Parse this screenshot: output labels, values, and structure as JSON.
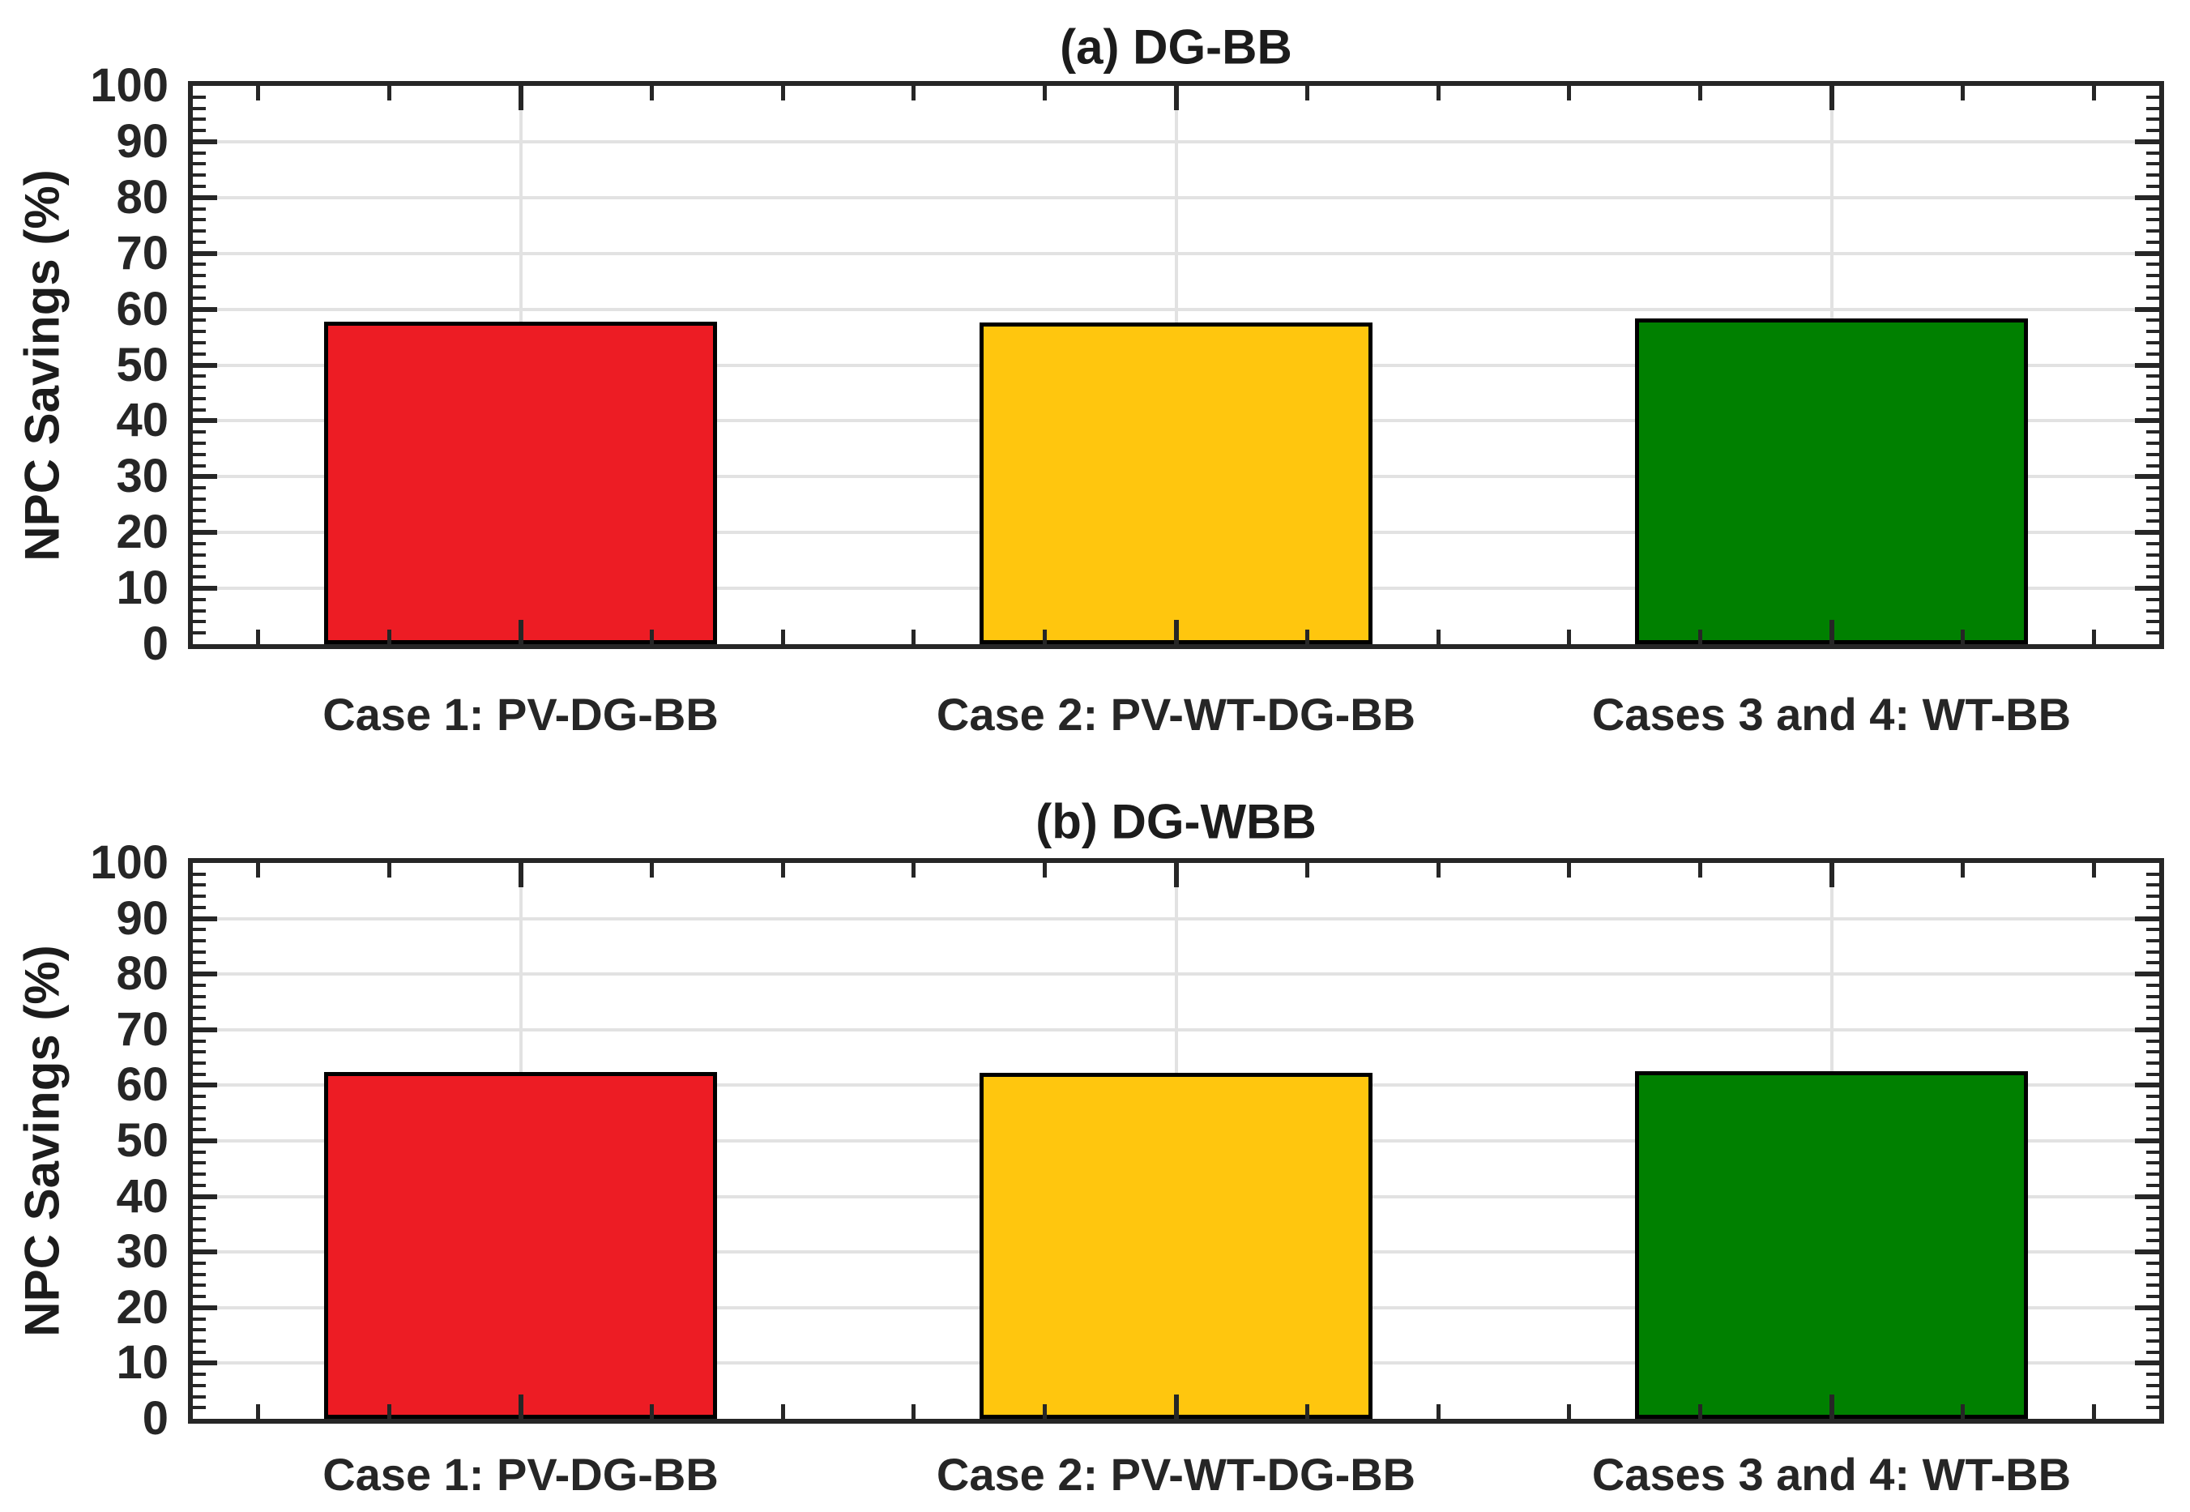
{
  "figure": {
    "background": "#ffffff",
    "axis_color": "#262626",
    "grid_color": "#e2e2e2",
    "bar_edge_color": "#000000",
    "text_color": "#1c1c1c"
  },
  "chart_data": [
    {
      "type": "bar",
      "title": "(a) DG-BB",
      "categories": [
        "Case 1: PV-DG-BB",
        "Case 2: PV-WT-DG-BB",
        "Cases 3 and 4: WT-BB"
      ],
      "values": [
        57.8,
        57.6,
        58.3
      ],
      "bar_colors": [
        "#ED1C24",
        "#FFC60E",
        "#008000"
      ],
      "ylabel": "NPC Savings (%)",
      "xlabel": "",
      "ylim": [
        0,
        100
      ],
      "yticks": [
        0,
        10,
        20,
        30,
        40,
        50,
        60,
        70,
        80,
        90,
        100
      ],
      "ytick_labels": [
        "0",
        "10",
        "20",
        "30",
        "40",
        "50",
        "60",
        "70",
        "80",
        "90",
        "100"
      ],
      "grid": "on",
      "legend": "none",
      "bar_width_fraction": 0.6,
      "y_minor_step": 2,
      "x_minor_step": 0.2
    },
    {
      "type": "bar",
      "title": "(b) DG-WBB",
      "categories": [
        "Case 1: PV-DG-BB",
        "Case 2: PV-WT-DG-BB",
        "Cases 3 and 4: WT-BB"
      ],
      "values": [
        62.4,
        62.2,
        62.6
      ],
      "bar_colors": [
        "#ED1C24",
        "#FFC60E",
        "#008000"
      ],
      "ylabel": "NPC Savings (%)",
      "xlabel": "",
      "ylim": [
        0,
        100
      ],
      "yticks": [
        0,
        10,
        20,
        30,
        40,
        50,
        60,
        70,
        80,
        90,
        100
      ],
      "ytick_labels": [
        "0",
        "10",
        "20",
        "30",
        "40",
        "50",
        "60",
        "70",
        "80",
        "90",
        "100"
      ],
      "grid": "on",
      "legend": "none",
      "bar_width_fraction": 0.6,
      "y_minor_step": 2,
      "x_minor_step": 0.2
    }
  ]
}
